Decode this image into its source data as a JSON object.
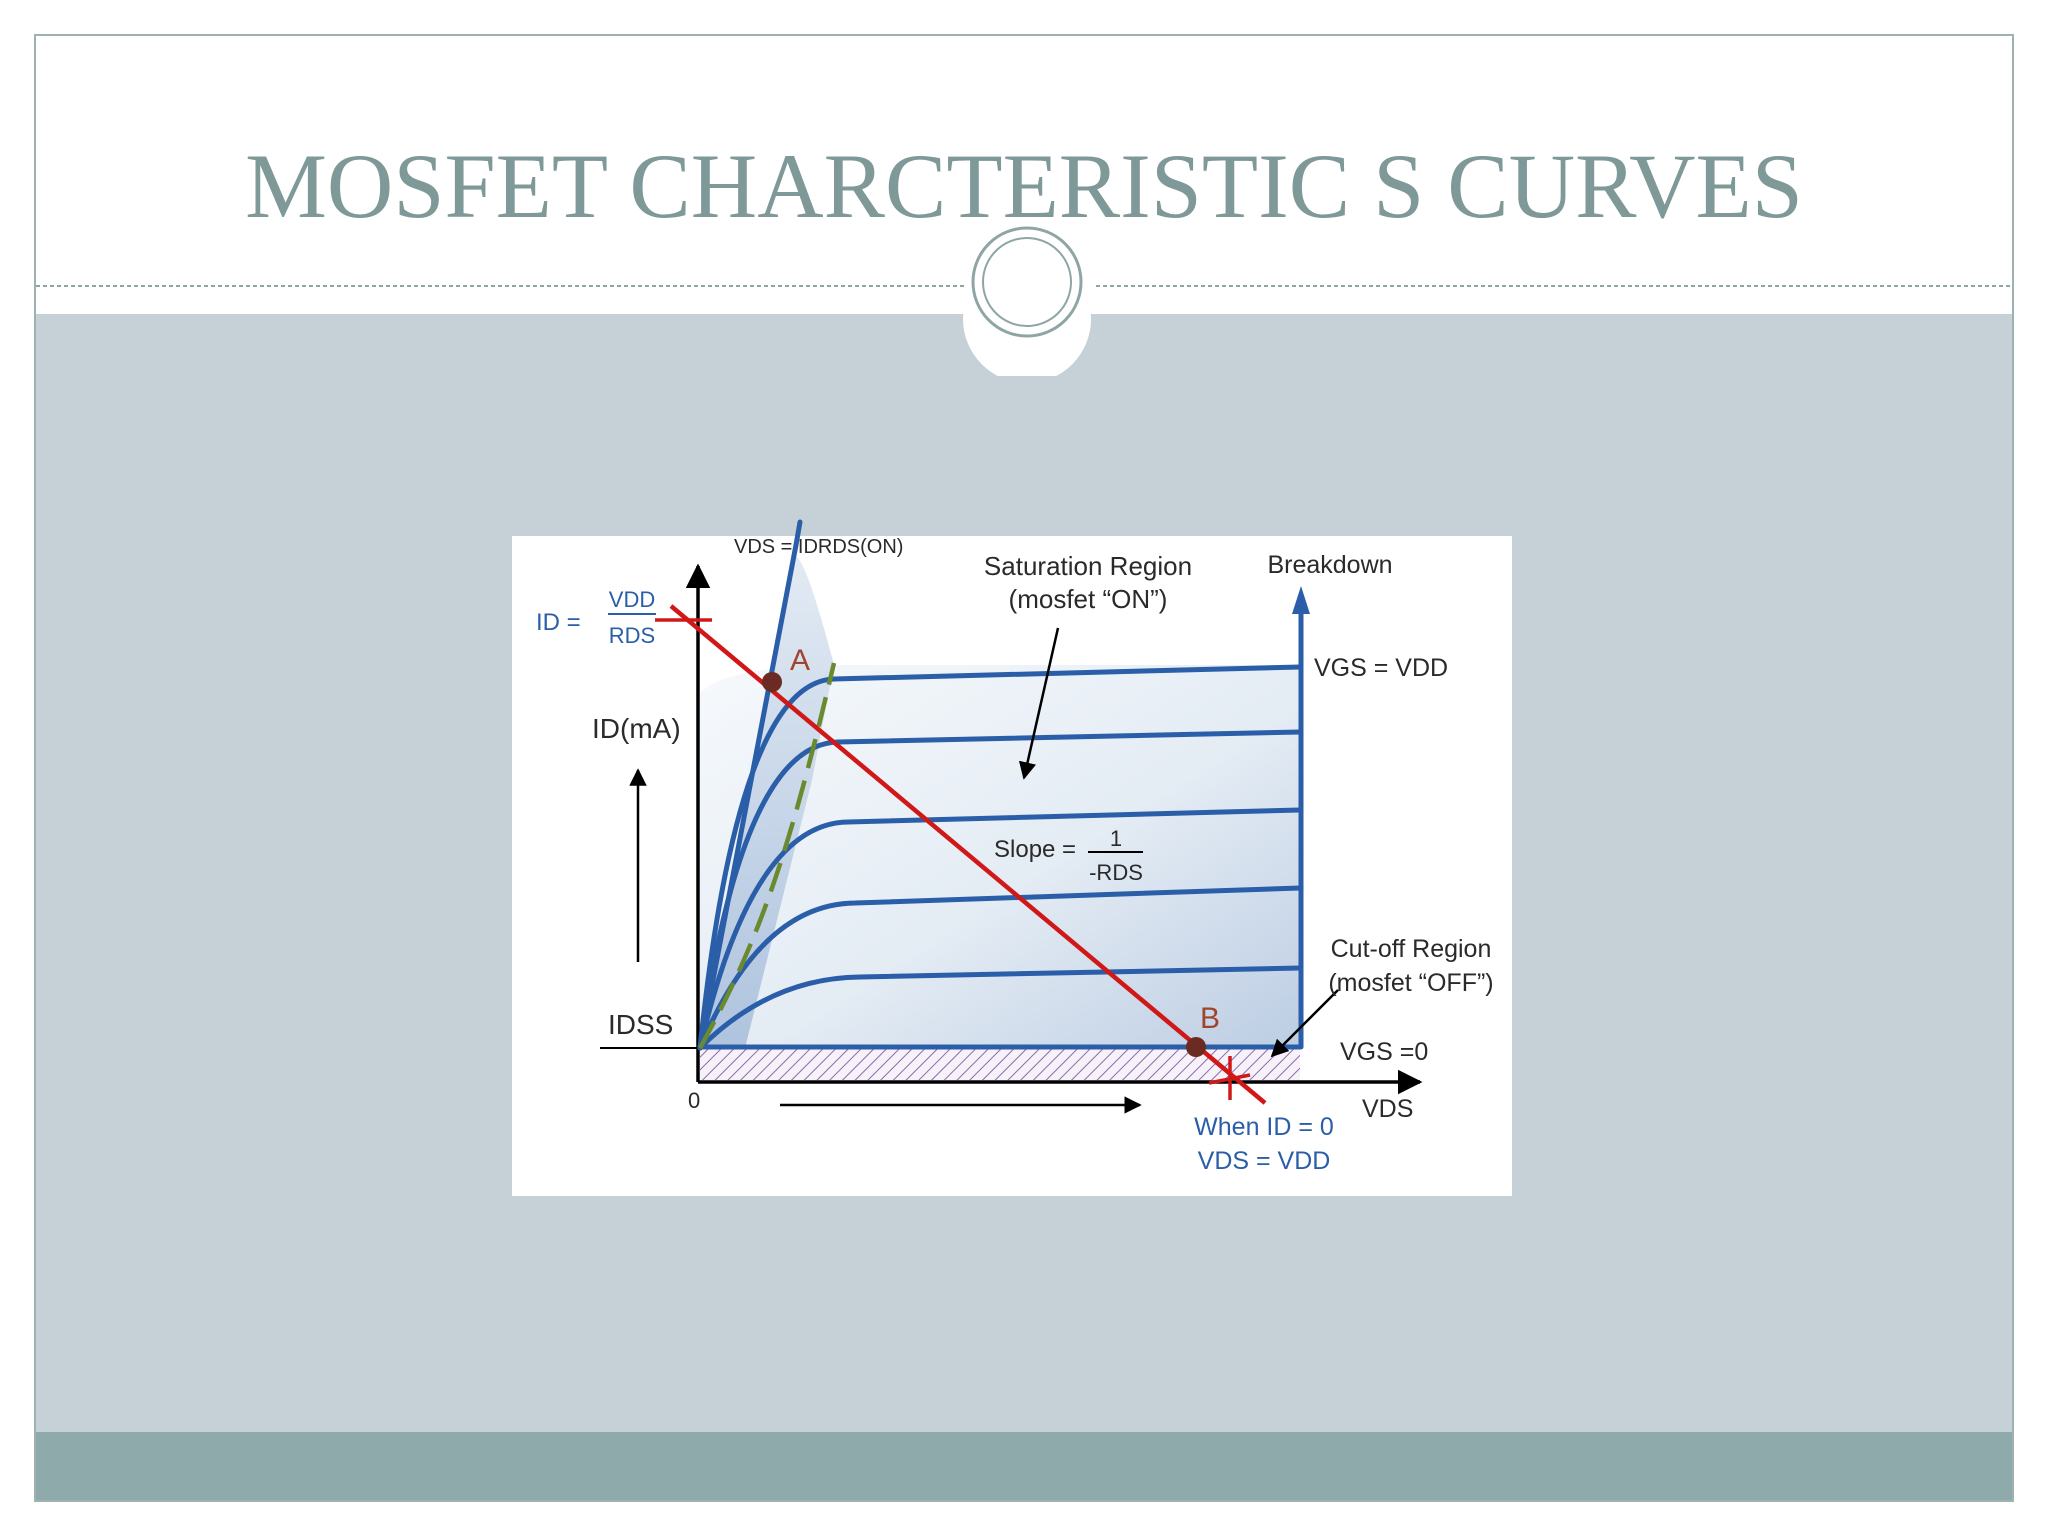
{
  "slide": {
    "title": "MOSFET CHARCTERISTIC S CURVES"
  },
  "colors": {
    "title": "#7f9898",
    "content_background": "#c5d1d6",
    "footer_band": "#8faaab",
    "curves": "#2b5ea8",
    "load_line": "#d01818",
    "boundary_dashed": "#6b8a2f",
    "point_marker": "#6b2a22",
    "point_label": "#a0442e"
  },
  "diagram": {
    "labels": {
      "vds_eq": "VDS = IDRDS(ON)",
      "saturation_line1": "Saturation Region",
      "saturation_line2": "(mosfet “ON”)",
      "breakdown": "Breakdown",
      "id_eq_lhs": "ID =",
      "id_eq_num": "VDD",
      "id_eq_den": "RDS",
      "point_a": "A",
      "point_b": "B",
      "vgs_vdd": "VGS = VDD",
      "id_ma": "ID(mA)",
      "slope": "Slope =",
      "slope_num": "1",
      "slope_den": "-RDS",
      "cutoff_line1": "Cut-off Region",
      "cutoff_line2": "(mosfet “OFF”)",
      "idss": "IDSS",
      "vgs_zero": "VGS =0",
      "origin": "0",
      "vds_axis": "VDS",
      "when_line1": "When ID = 0",
      "when_line2": "VDS = VDD"
    }
  }
}
